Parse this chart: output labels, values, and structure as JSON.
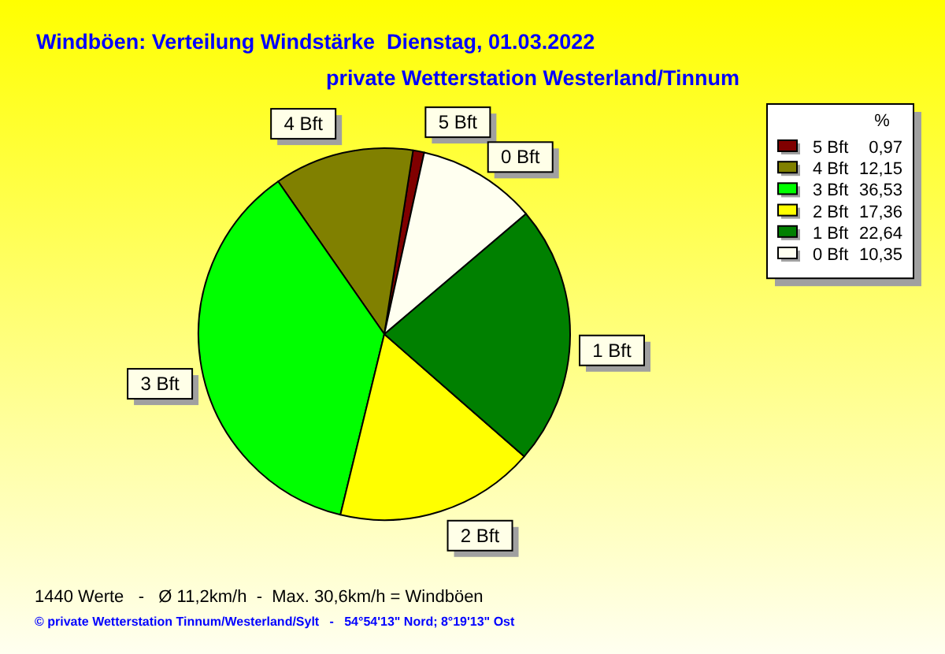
{
  "chart_data": {
    "type": "pie",
    "title": "Windböen: Verteilung Windstärke  Dienstag, 01.03.2022",
    "subtitle": "private Wetterstation Westerland/Tinnum",
    "categories": [
      "5 Bft",
      "4 Bft",
      "3 Bft",
      "2 Bft",
      "1 Bft",
      "0 Bft"
    ],
    "values": [
      0.97,
      12.15,
      36.53,
      17.36,
      22.64,
      10.35
    ],
    "colors": [
      "#800000",
      "#808000",
      "#00ff00",
      "#ffff00",
      "#008000",
      "#fffff0"
    ],
    "value_labels": [
      "0,97",
      "12,15",
      "36,53",
      "17,36",
      "22,64",
      "10,35"
    ],
    "legend": "top right",
    "legend_title": "%",
    "annotations": [
      "1440 Werte   -   Ø 11,2km/h  -  Max. 30,6km/h = Windböen",
      "© private Wetterstation Tinnum/Westerland/Sylt   -   54°54'13\" Nord; 8°19'13\" Ost"
    ]
  }
}
